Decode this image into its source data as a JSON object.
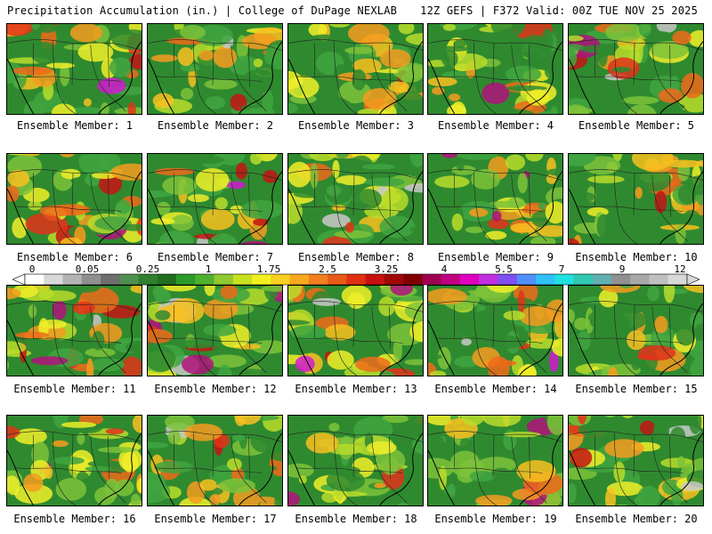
{
  "header": {
    "title": "Precipitation Accumulation (in.) | College of DuPage NEXLAB",
    "run_info": "12Z GEFS | F372 Valid: 00Z TUE NOV 25 2025"
  },
  "members": [
    {
      "label": "Ensemble Member: 1"
    },
    {
      "label": "Ensemble Member: 2"
    },
    {
      "label": "Ensemble Member: 3"
    },
    {
      "label": "Ensemble Member: 4"
    },
    {
      "label": "Ensemble Member: 5"
    },
    {
      "label": "Ensemble Member: 6"
    },
    {
      "label": "Ensemble Member: 7"
    },
    {
      "label": "Ensemble Member: 8"
    },
    {
      "label": "Ensemble Member: 9"
    },
    {
      "label": "Ensemble Member: 10"
    },
    {
      "label": "Ensemble Member: 11"
    },
    {
      "label": "Ensemble Member: 12"
    },
    {
      "label": "Ensemble Member: 13"
    },
    {
      "label": "Ensemble Member: 14"
    },
    {
      "label": "Ensemble Member: 15"
    },
    {
      "label": "Ensemble Member: 16"
    },
    {
      "label": "Ensemble Member: 17"
    },
    {
      "label": "Ensemble Member: 18"
    },
    {
      "label": "Ensemble Member: 19"
    },
    {
      "label": "Ensemble Member: 20"
    }
  ],
  "colorbar": {
    "tick_labels": [
      "0",
      "0.05",
      "0.25",
      "1",
      "1.75",
      "2.5",
      "3.25",
      "4",
      "5.5",
      "7",
      "9",
      "12"
    ],
    "colors": [
      "#ffffff",
      "#d8d8d8",
      "#b4b4b4",
      "#909090",
      "#6e6e6e",
      "#4f8f4f",
      "#2f7f2f",
      "#1f6f1f",
      "#2a9a2a",
      "#4fb02f",
      "#8fc82f",
      "#c8e020",
      "#f0f020",
      "#f8d020",
      "#f8a820",
      "#f08020",
      "#e85a18",
      "#e03010",
      "#c81010",
      "#a00808",
      "#800000",
      "#a00050",
      "#c00080",
      "#e000c0",
      "#c030e0",
      "#8050f0",
      "#5090f8",
      "#30c0f8",
      "#20e0e0",
      "#30c8b0",
      "#60b0b0",
      "#909090",
      "#a8a8a8",
      "#c0c0c0",
      "#d8d8d8"
    ]
  }
}
